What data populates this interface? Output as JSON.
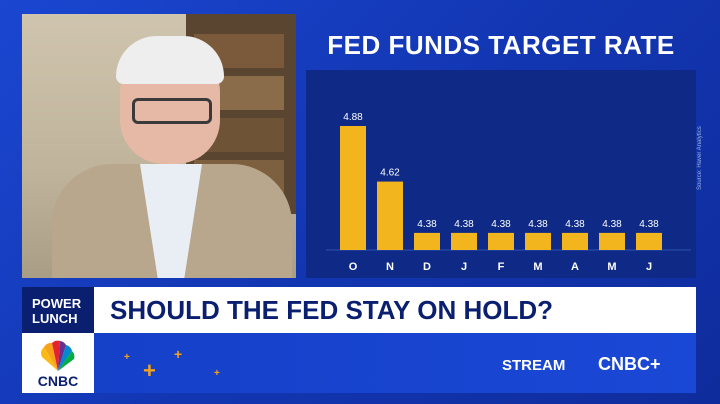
{
  "chart_data": {
    "type": "bar",
    "title": "FED FUNDS TARGET RATE",
    "categories": [
      "O",
      "N",
      "D",
      "J",
      "F",
      "M",
      "A",
      "M",
      "J"
    ],
    "values": [
      4.88,
      4.62,
      4.38,
      4.38,
      4.38,
      4.38,
      4.38,
      4.38,
      4.38
    ],
    "value_labels": [
      "4.88",
      "4.62",
      "4.38",
      "4.38",
      "4.38",
      "4.38",
      "4.38",
      "4.38",
      "4.38"
    ],
    "source": "Source: Haver Analytics",
    "bar_color": "#f2b51d",
    "xlabel": "",
    "ylabel": ""
  },
  "banner": {
    "show": "POWER LUNCH",
    "show_line1": "POWER",
    "show_line2": "LUNCH",
    "headline": "SHOULD THE FED STAY ON HOLD?"
  },
  "branding": {
    "network": "CNBC",
    "stream_label": "STREAM",
    "stream_brand": "CNBC+",
    "peacock_icon": "peacock-icon"
  },
  "colors": {
    "background": "#1238b8",
    "navy": "#0a1f70",
    "accent_orange": "#f7a21b"
  }
}
